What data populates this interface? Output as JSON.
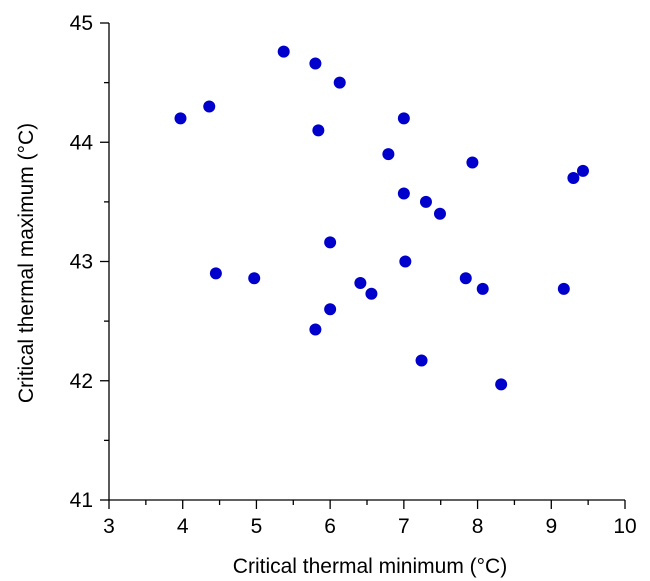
{
  "chart_data": {
    "type": "scatter",
    "title": "",
    "xlabel": "Critical thermal minimum (°C)",
    "ylabel": "Critical thermal maximum (°C)",
    "xlim": [
      3,
      10
    ],
    "ylim": [
      41,
      45
    ],
    "x_ticks": [
      3,
      4,
      5,
      6,
      7,
      8,
      9,
      10
    ],
    "y_ticks": [
      41,
      42,
      43,
      44,
      45
    ],
    "x_minor_step": 0.5,
    "y_minor_step": 0.5,
    "grid": false,
    "legend": "none",
    "marker_color": "#0000cc",
    "points": [
      {
        "x": 3.97,
        "y": 44.2
      },
      {
        "x": 4.36,
        "y": 44.3
      },
      {
        "x": 4.45,
        "y": 42.9
      },
      {
        "x": 4.97,
        "y": 42.86
      },
      {
        "x": 5.37,
        "y": 44.76
      },
      {
        "x": 5.8,
        "y": 44.66
      },
      {
        "x": 5.84,
        "y": 44.1
      },
      {
        "x": 6.13,
        "y": 44.5
      },
      {
        "x": 6.0,
        "y": 43.16
      },
      {
        "x": 5.8,
        "y": 42.43
      },
      {
        "x": 6.0,
        "y": 42.6
      },
      {
        "x": 6.41,
        "y": 42.82
      },
      {
        "x": 6.56,
        "y": 42.73
      },
      {
        "x": 6.79,
        "y": 43.9
      },
      {
        "x": 7.0,
        "y": 44.2
      },
      {
        "x": 7.0,
        "y": 43.57
      },
      {
        "x": 7.3,
        "y": 43.5
      },
      {
        "x": 7.49,
        "y": 43.4
      },
      {
        "x": 7.02,
        "y": 43.0
      },
      {
        "x": 7.24,
        "y": 42.17
      },
      {
        "x": 7.93,
        "y": 43.83
      },
      {
        "x": 7.84,
        "y": 42.86
      },
      {
        "x": 8.07,
        "y": 42.77
      },
      {
        "x": 8.32,
        "y": 41.97
      },
      {
        "x": 9.17,
        "y": 42.77
      },
      {
        "x": 9.3,
        "y": 43.7
      },
      {
        "x": 9.43,
        "y": 43.76
      }
    ]
  }
}
